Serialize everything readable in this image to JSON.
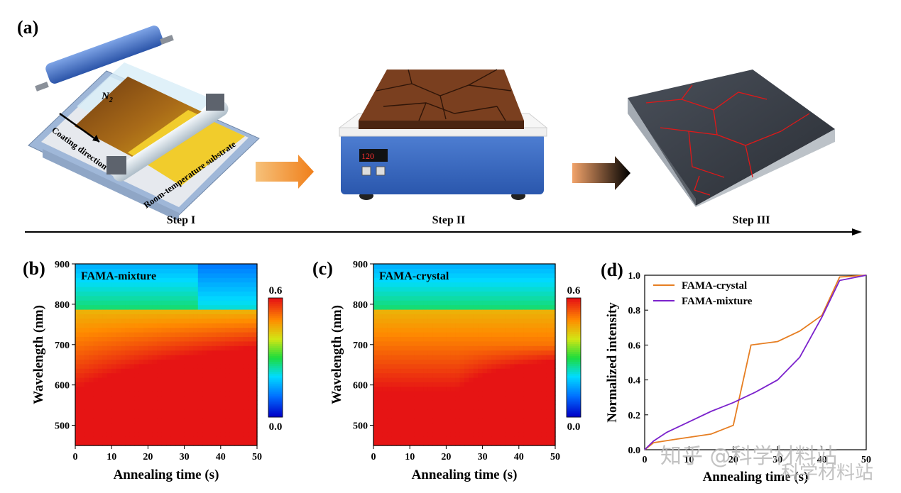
{
  "panel_a": {
    "letter": "(a)",
    "gas_label": "N",
    "gas_subscript": "2",
    "coating_direction": "Coating direction",
    "substrate_label": "Room-temperature substrate",
    "hotplate_display": "120",
    "steps": [
      "Step I",
      "Step II",
      "Step III"
    ]
  },
  "panel_b": {
    "letter": "(b)",
    "inset_label": "FAMA-mixture"
  },
  "panel_c": {
    "letter": "(c)",
    "inset_label": "FAMA-crystal"
  },
  "panel_d": {
    "letter": "(d)"
  },
  "colorbar": {
    "max_label": "0.6",
    "min_label": "0.0"
  },
  "watermark": {
    "line1": "知乎 @科学材料站",
    "line2": "科学材料站"
  },
  "chart_data": [
    {
      "type": "heatmap",
      "title": "FAMA-mixture",
      "xlabel": "Annealing time (s)",
      "ylabel": "Wavelength (nm)",
      "xlim": [
        0,
        50
      ],
      "ylim": [
        450,
        900
      ],
      "xticks": [
        "0",
        "10",
        "20",
        "30",
        "40",
        "50"
      ],
      "yticks": [
        "500",
        "600",
        "700",
        "800",
        "900"
      ],
      "colorbar_range": [
        0.0,
        0.6
      ]
    },
    {
      "type": "heatmap",
      "title": "FAMA-crystal",
      "xlabel": "Annealing time (s)",
      "ylabel": "Wavelength (nm)",
      "xlim": [
        0,
        50
      ],
      "ylim": [
        450,
        900
      ],
      "xticks": [
        "0",
        "10",
        "20",
        "30",
        "40",
        "50"
      ],
      "yticks": [
        "500",
        "600",
        "700",
        "800",
        "900"
      ],
      "colorbar_range": [
        0.0,
        0.6
      ]
    },
    {
      "type": "line",
      "xlabel": "Annealing time (s)",
      "ylabel": "Normalized intensity",
      "xlim": [
        0,
        50
      ],
      "ylim": [
        0.0,
        1.0
      ],
      "xticks": [
        "0",
        "10",
        "20",
        "30",
        "40",
        "50"
      ],
      "yticks": [
        "0.0",
        "0.2",
        "0.4",
        "0.6",
        "0.8",
        "1.0"
      ],
      "legend_position": "top-left",
      "series": [
        {
          "name": "FAMA-crystal",
          "color": "#e67e22",
          "x": [
            0,
            2,
            7,
            15,
            20,
            24,
            30,
            35,
            40,
            44,
            50
          ],
          "y": [
            0.0,
            0.04,
            0.06,
            0.09,
            0.14,
            0.6,
            0.62,
            0.68,
            0.77,
            0.99,
            1.0
          ]
        },
        {
          "name": "FAMA-mixture",
          "color": "#7b22cc",
          "x": [
            0,
            2,
            5,
            10,
            15,
            20,
            25,
            30,
            35,
            40,
            44,
            50
          ],
          "y": [
            0.0,
            0.05,
            0.1,
            0.16,
            0.22,
            0.27,
            0.33,
            0.4,
            0.53,
            0.76,
            0.97,
            1.0
          ]
        }
      ]
    }
  ]
}
